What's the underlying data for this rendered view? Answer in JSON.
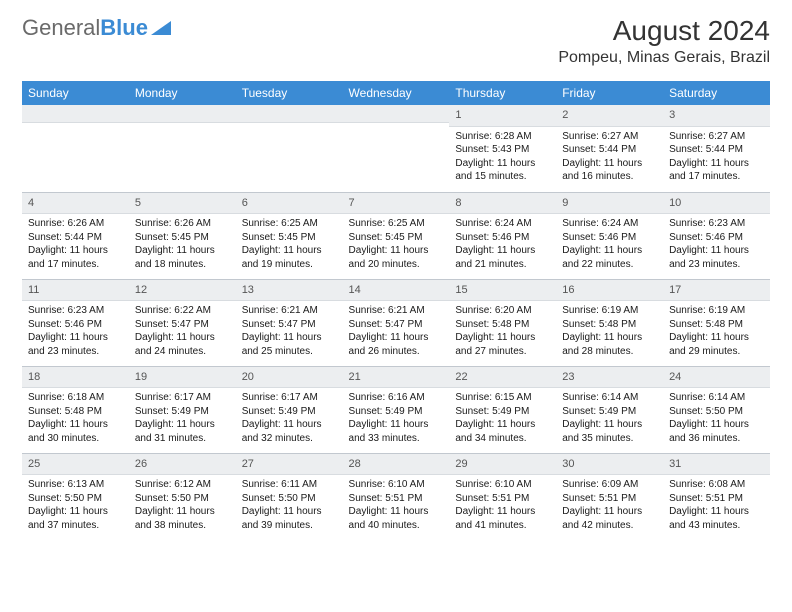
{
  "logo": {
    "text_a": "General",
    "text_b": "Blue"
  },
  "title": "August 2024",
  "location": "Pompeu, Minas Gerais, Brazil",
  "colors": {
    "header_bg": "#3b8bd4",
    "header_fg": "#ffffff",
    "daynum_bg": "#eceef0",
    "divider": "#c2c8cf",
    "text": "#1a1a1a",
    "logo_blue": "#3b8bd4"
  },
  "fonts": {
    "title_size": 28,
    "location_size": 16,
    "weekday_size": 12,
    "cell_size": 10
  },
  "weekdays": [
    "Sunday",
    "Monday",
    "Tuesday",
    "Wednesday",
    "Thursday",
    "Friday",
    "Saturday"
  ],
  "weeks": [
    [
      {
        "day": "",
        "lines": []
      },
      {
        "day": "",
        "lines": []
      },
      {
        "day": "",
        "lines": []
      },
      {
        "day": "",
        "lines": []
      },
      {
        "day": "1",
        "lines": [
          "Sunrise: 6:28 AM",
          "Sunset: 5:43 PM",
          "Daylight: 11 hours",
          "and 15 minutes."
        ]
      },
      {
        "day": "2",
        "lines": [
          "Sunrise: 6:27 AM",
          "Sunset: 5:44 PM",
          "Daylight: 11 hours",
          "and 16 minutes."
        ]
      },
      {
        "day": "3",
        "lines": [
          "Sunrise: 6:27 AM",
          "Sunset: 5:44 PM",
          "Daylight: 11 hours",
          "and 17 minutes."
        ]
      }
    ],
    [
      {
        "day": "4",
        "lines": [
          "Sunrise: 6:26 AM",
          "Sunset: 5:44 PM",
          "Daylight: 11 hours",
          "and 17 minutes."
        ]
      },
      {
        "day": "5",
        "lines": [
          "Sunrise: 6:26 AM",
          "Sunset: 5:45 PM",
          "Daylight: 11 hours",
          "and 18 minutes."
        ]
      },
      {
        "day": "6",
        "lines": [
          "Sunrise: 6:25 AM",
          "Sunset: 5:45 PM",
          "Daylight: 11 hours",
          "and 19 minutes."
        ]
      },
      {
        "day": "7",
        "lines": [
          "Sunrise: 6:25 AM",
          "Sunset: 5:45 PM",
          "Daylight: 11 hours",
          "and 20 minutes."
        ]
      },
      {
        "day": "8",
        "lines": [
          "Sunrise: 6:24 AM",
          "Sunset: 5:46 PM",
          "Daylight: 11 hours",
          "and 21 minutes."
        ]
      },
      {
        "day": "9",
        "lines": [
          "Sunrise: 6:24 AM",
          "Sunset: 5:46 PM",
          "Daylight: 11 hours",
          "and 22 minutes."
        ]
      },
      {
        "day": "10",
        "lines": [
          "Sunrise: 6:23 AM",
          "Sunset: 5:46 PM",
          "Daylight: 11 hours",
          "and 23 minutes."
        ]
      }
    ],
    [
      {
        "day": "11",
        "lines": [
          "Sunrise: 6:23 AM",
          "Sunset: 5:46 PM",
          "Daylight: 11 hours",
          "and 23 minutes."
        ]
      },
      {
        "day": "12",
        "lines": [
          "Sunrise: 6:22 AM",
          "Sunset: 5:47 PM",
          "Daylight: 11 hours",
          "and 24 minutes."
        ]
      },
      {
        "day": "13",
        "lines": [
          "Sunrise: 6:21 AM",
          "Sunset: 5:47 PM",
          "Daylight: 11 hours",
          "and 25 minutes."
        ]
      },
      {
        "day": "14",
        "lines": [
          "Sunrise: 6:21 AM",
          "Sunset: 5:47 PM",
          "Daylight: 11 hours",
          "and 26 minutes."
        ]
      },
      {
        "day": "15",
        "lines": [
          "Sunrise: 6:20 AM",
          "Sunset: 5:48 PM",
          "Daylight: 11 hours",
          "and 27 minutes."
        ]
      },
      {
        "day": "16",
        "lines": [
          "Sunrise: 6:19 AM",
          "Sunset: 5:48 PM",
          "Daylight: 11 hours",
          "and 28 minutes."
        ]
      },
      {
        "day": "17",
        "lines": [
          "Sunrise: 6:19 AM",
          "Sunset: 5:48 PM",
          "Daylight: 11 hours",
          "and 29 minutes."
        ]
      }
    ],
    [
      {
        "day": "18",
        "lines": [
          "Sunrise: 6:18 AM",
          "Sunset: 5:48 PM",
          "Daylight: 11 hours",
          "and 30 minutes."
        ]
      },
      {
        "day": "19",
        "lines": [
          "Sunrise: 6:17 AM",
          "Sunset: 5:49 PM",
          "Daylight: 11 hours",
          "and 31 minutes."
        ]
      },
      {
        "day": "20",
        "lines": [
          "Sunrise: 6:17 AM",
          "Sunset: 5:49 PM",
          "Daylight: 11 hours",
          "and 32 minutes."
        ]
      },
      {
        "day": "21",
        "lines": [
          "Sunrise: 6:16 AM",
          "Sunset: 5:49 PM",
          "Daylight: 11 hours",
          "and 33 minutes."
        ]
      },
      {
        "day": "22",
        "lines": [
          "Sunrise: 6:15 AM",
          "Sunset: 5:49 PM",
          "Daylight: 11 hours",
          "and 34 minutes."
        ]
      },
      {
        "day": "23",
        "lines": [
          "Sunrise: 6:14 AM",
          "Sunset: 5:49 PM",
          "Daylight: 11 hours",
          "and 35 minutes."
        ]
      },
      {
        "day": "24",
        "lines": [
          "Sunrise: 6:14 AM",
          "Sunset: 5:50 PM",
          "Daylight: 11 hours",
          "and 36 minutes."
        ]
      }
    ],
    [
      {
        "day": "25",
        "lines": [
          "Sunrise: 6:13 AM",
          "Sunset: 5:50 PM",
          "Daylight: 11 hours",
          "and 37 minutes."
        ]
      },
      {
        "day": "26",
        "lines": [
          "Sunrise: 6:12 AM",
          "Sunset: 5:50 PM",
          "Daylight: 11 hours",
          "and 38 minutes."
        ]
      },
      {
        "day": "27",
        "lines": [
          "Sunrise: 6:11 AM",
          "Sunset: 5:50 PM",
          "Daylight: 11 hours",
          "and 39 minutes."
        ]
      },
      {
        "day": "28",
        "lines": [
          "Sunrise: 6:10 AM",
          "Sunset: 5:51 PM",
          "Daylight: 11 hours",
          "and 40 minutes."
        ]
      },
      {
        "day": "29",
        "lines": [
          "Sunrise: 6:10 AM",
          "Sunset: 5:51 PM",
          "Daylight: 11 hours",
          "and 41 minutes."
        ]
      },
      {
        "day": "30",
        "lines": [
          "Sunrise: 6:09 AM",
          "Sunset: 5:51 PM",
          "Daylight: 11 hours",
          "and 42 minutes."
        ]
      },
      {
        "day": "31",
        "lines": [
          "Sunrise: 6:08 AM",
          "Sunset: 5:51 PM",
          "Daylight: 11 hours",
          "and 43 minutes."
        ]
      }
    ]
  ]
}
